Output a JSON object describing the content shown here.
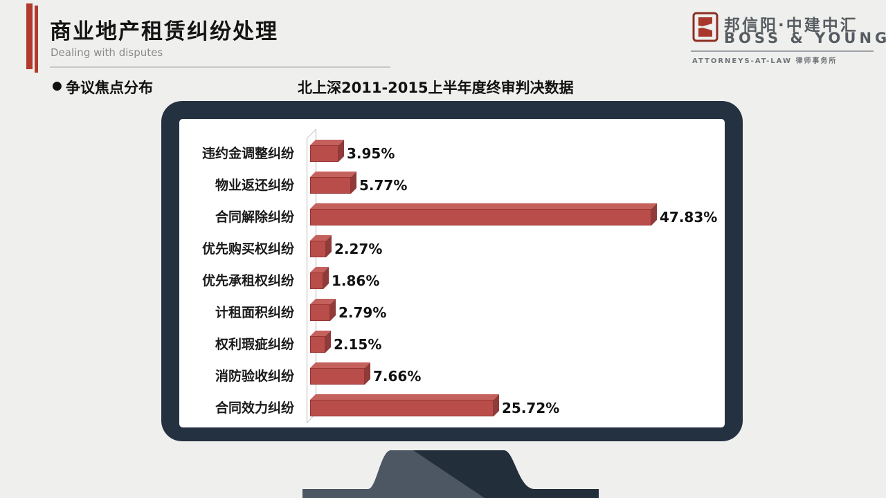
{
  "header": {
    "title": "商业地产租赁纠纷处理",
    "subtitle": "Dealing with disputes"
  },
  "logo": {
    "cn_name": "邦信阳·中建中汇",
    "en_name": "BOSS & YOUNG",
    "tagline_en": "ATTORNEYS-AT-LAW",
    "tagline_cn": "律师事务所"
  },
  "section": {
    "bullet_label": "争议焦点分布",
    "caption": "北上深2011-2015上半年度终审判决数据"
  },
  "chart_data": {
    "type": "bar",
    "orientation": "horizontal",
    "title": "北上深2011-2015上半年度终审判决数据",
    "categories": [
      "违约金调整纠纷",
      "物业返还纠纷",
      "合同解除纠纷",
      "优先购买权纠纷",
      "优先承租权纠纷",
      "计租面积纠纷",
      "权利瑕疵纠纷",
      "消防验收纠纷",
      "合同效力纠纷"
    ],
    "values": [
      3.95,
      5.77,
      47.83,
      2.27,
      1.86,
      2.79,
      2.15,
      7.66,
      25.72
    ],
    "value_labels": [
      "3.95%",
      "5.77%",
      "47.83%",
      "2.27%",
      "1.86%",
      "2.79%",
      "2.15%",
      "7.66%",
      "25.72%"
    ],
    "xlabel": "",
    "ylabel": "",
    "xlim": [
      0,
      50
    ],
    "grid": false,
    "legend": false,
    "bar_color": "#b94d4a",
    "bar_top_color": "#c5615d",
    "bar_side_color": "#8e3b39"
  },
  "colors": {
    "accent_red": "#b03a2e",
    "monitor_frame": "#243140",
    "stand_light": "#4d5763",
    "stand_dark": "#232e3b",
    "background": "#efefed"
  }
}
